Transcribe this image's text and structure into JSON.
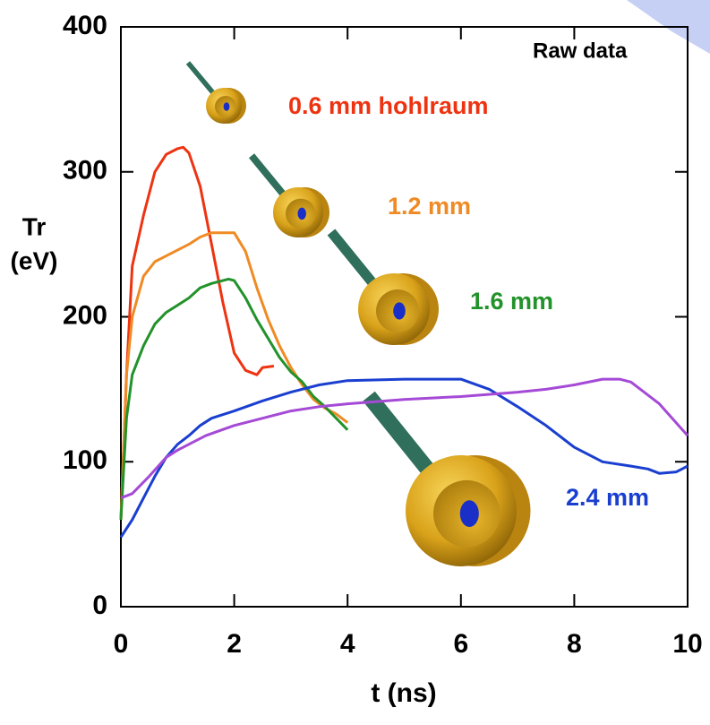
{
  "chart_data": {
    "type": "line",
    "annotation": "Raw data",
    "xlabel": "t  (ns)",
    "ylabel": [
      "Tr",
      "(eV)"
    ],
    "xlim": [
      0,
      10
    ],
    "xticks": [
      0,
      2,
      4,
      6,
      8,
      10
    ],
    "ylim": [
      0,
      400
    ],
    "yticks": [
      0,
      100,
      200,
      300,
      400
    ],
    "series": [
      {
        "name": "0.6 mm hohlraum",
        "color": "#ee3311",
        "x": [
          0,
          0.1,
          0.2,
          0.4,
          0.6,
          0.8,
          1.0,
          1.1,
          1.2,
          1.4,
          1.6,
          1.8,
          2.0,
          2.2,
          2.4,
          2.5,
          2.7
        ],
        "values": [
          60,
          160,
          235,
          270,
          300,
          312,
          316,
          317,
          313,
          290,
          250,
          210,
          175,
          163,
          160,
          165,
          166
        ]
      },
      {
        "name": "1.2 mm",
        "color": "#f08a24",
        "x": [
          0,
          0.1,
          0.2,
          0.4,
          0.6,
          0.8,
          1.0,
          1.2,
          1.4,
          1.6,
          1.8,
          2.0,
          2.2,
          2.4,
          2.6,
          2.8,
          3.0,
          3.2,
          3.4,
          3.6,
          3.8,
          4.0
        ],
        "values": [
          60,
          160,
          200,
          228,
          238,
          242,
          246,
          250,
          255,
          258,
          258,
          258,
          245,
          220,
          198,
          180,
          165,
          153,
          143,
          137,
          133,
          127
        ]
      },
      {
        "name": "1.6 mm",
        "color": "#22922a",
        "x": [
          0,
          0.1,
          0.2,
          0.4,
          0.6,
          0.8,
          1.0,
          1.2,
          1.4,
          1.6,
          1.8,
          1.9,
          2.0,
          2.2,
          2.4,
          2.6,
          2.8,
          3.0,
          3.2,
          3.4,
          3.6,
          3.8,
          4.0
        ],
        "values": [
          60,
          130,
          160,
          180,
          195,
          203,
          208,
          213,
          220,
          223,
          225,
          226,
          225,
          213,
          198,
          185,
          172,
          162,
          155,
          145,
          138,
          130,
          122
        ]
      },
      {
        "name": "2.4 mm",
        "color": "#1a3fd0",
        "x": [
          0,
          0.2,
          0.4,
          0.6,
          0.8,
          1.0,
          1.2,
          1.4,
          1.6,
          2.0,
          2.5,
          3.0,
          3.5,
          4.0,
          5.0,
          6.0,
          6.5,
          7.0,
          7.5,
          8.0,
          8.5,
          9.0,
          9.3,
          9.5,
          9.8,
          10
        ],
        "values": [
          48,
          60,
          75,
          90,
          103,
          112,
          118,
          125,
          130,
          135,
          142,
          148,
          153,
          156,
          157,
          157,
          150,
          138,
          125,
          110,
          100,
          97,
          95,
          92,
          93,
          97
        ]
      },
      {
        "color": "#a54ad6",
        "x": [
          0,
          0.2,
          0.5,
          0.8,
          1.0,
          1.5,
          2.0,
          2.5,
          3.0,
          3.5,
          4.0,
          5.0,
          6.0,
          7.0,
          7.5,
          8.0,
          8.5,
          8.8,
          9.0,
          9.5,
          10
        ],
        "values": [
          75,
          78,
          90,
          103,
          108,
          118,
          125,
          130,
          135,
          138,
          140,
          143,
          145,
          148,
          150,
          153,
          157,
          157,
          155,
          140,
          118
        ]
      }
    ]
  }
}
